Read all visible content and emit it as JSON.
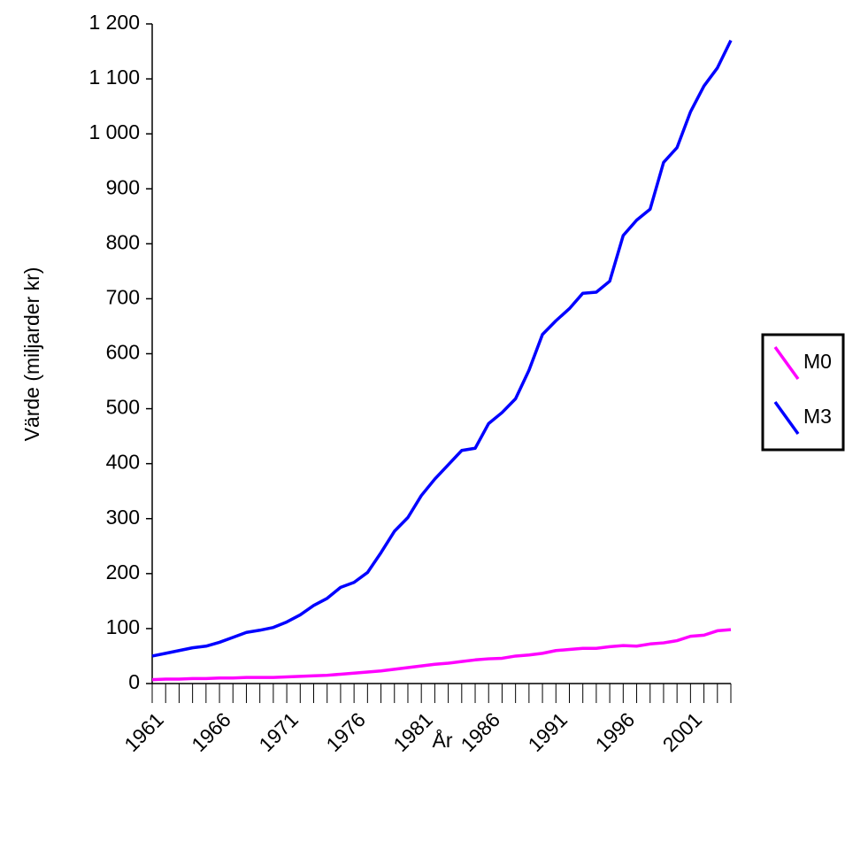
{
  "chart_data": {
    "type": "line",
    "x_label": "År",
    "y_label": "Värde (miljarder kr)",
    "categories": [
      "1961",
      null,
      null,
      null,
      null,
      "1966",
      null,
      null,
      null,
      null,
      "1971",
      null,
      null,
      null,
      null,
      "1976",
      null,
      null,
      null,
      null,
      "1981",
      null,
      null,
      null,
      null,
      "1986",
      null,
      null,
      null,
      null,
      "1991",
      null,
      null,
      null,
      null,
      "1996",
      null,
      null,
      null,
      null,
      "2001",
      null,
      null,
      null
    ],
    "series": [
      {
        "name": "M0",
        "color": "#ff00ff",
        "values": [
          7,
          8,
          8,
          9,
          9,
          10,
          10,
          11,
          11,
          11,
          12,
          13,
          14,
          15,
          17,
          19,
          21,
          23,
          26,
          29,
          32,
          35,
          37,
          40,
          43,
          45,
          46,
          50,
          52,
          55,
          60,
          62,
          64,
          64,
          67,
          69,
          68,
          72,
          74,
          78,
          86,
          88,
          96,
          98
        ]
      },
      {
        "name": "M3",
        "color": "#0000ff",
        "values": [
          50,
          55,
          60,
          65,
          68,
          75,
          84,
          93,
          97,
          102,
          112,
          125,
          142,
          155,
          175,
          184,
          202,
          238,
          277,
          302,
          342,
          372,
          398,
          424,
          428,
          473,
          493,
          518,
          570,
          635,
          660,
          682,
          710,
          712,
          732,
          815,
          843,
          863,
          948,
          975,
          1040,
          1087,
          1120,
          1170
        ]
      }
    ],
    "ylim": [
      0,
      1200
    ],
    "yticks": [
      0,
      100,
      200,
      300,
      400,
      500,
      600,
      700,
      800,
      900,
      {
        "value": 1000,
        "label": "1 000"
      },
      {
        "value": 1100,
        "label": "1 100"
      },
      {
        "value": 1200,
        "label": "1 200"
      }
    ],
    "grid": false,
    "legend": "right"
  }
}
